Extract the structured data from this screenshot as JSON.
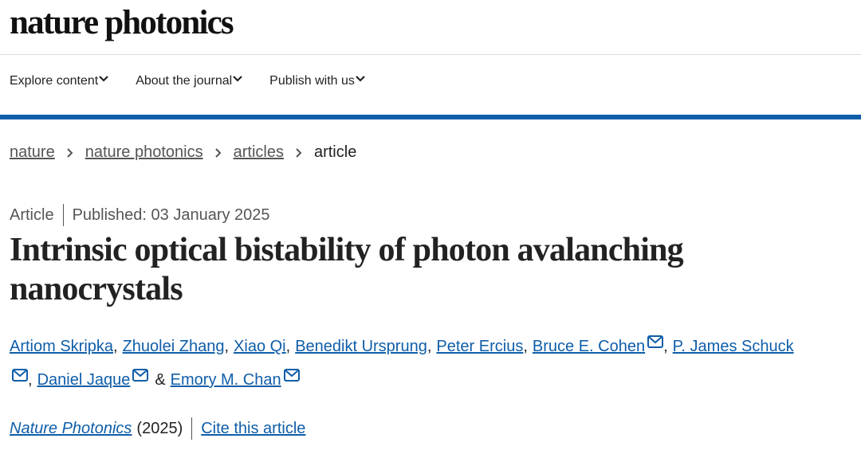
{
  "header": {
    "logo": "nature photonics"
  },
  "nav": [
    "Explore content",
    "About the journal",
    "Publish with us"
  ],
  "breadcrumbs": [
    "nature",
    "nature photonics",
    "articles",
    "article"
  ],
  "article": {
    "type": "Article",
    "published": "Published: 03 January 2025",
    "title": "Intrinsic optical bistability of photon avalanching nanocrystals",
    "authors": [
      {
        "name": "Artiom Skripka",
        "after": ",",
        "corresponding": false
      },
      {
        "name": "Zhuolei Zhang",
        "after": ",",
        "corresponding": false
      },
      {
        "name": "Xiao Qi",
        "after": ",",
        "corresponding": false
      },
      {
        "name": "Benedikt Ursprung",
        "after": ",",
        "corresponding": false
      },
      {
        "name": "Peter Ercius",
        "after": ",",
        "corresponding": false
      },
      {
        "name": "Bruce E. Cohen",
        "after": ",",
        "corresponding": true
      },
      {
        "name": "P. James Schuck",
        "after": ",",
        "corresponding": true
      },
      {
        "name": "Daniel Jaque",
        "after": "&",
        "corresponding": true
      },
      {
        "name": "Emory M. Chan",
        "after": null,
        "corresponding": true
      }
    ],
    "journal": "Nature Photonics",
    "year": "(2025)",
    "cite": "Cite this article"
  }
}
